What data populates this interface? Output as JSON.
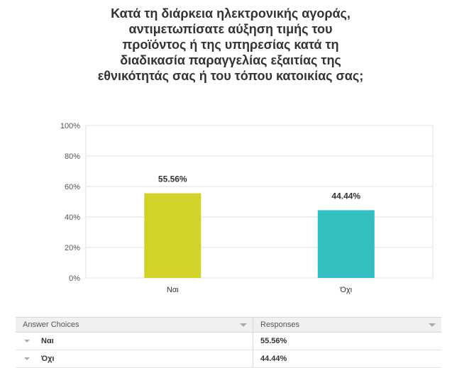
{
  "chart_data": {
    "type": "bar",
    "title_lines": [
      "Κατά τη διάρκεια ηλεκτρονικής αγοράς,",
      "αντιμετωπίσατε αύξηση τιμής του",
      "προϊόντος ή της υπηρεσίας κατά τη",
      "διαδικασία παραγγελίας εξαιτίας της",
      "εθνικότητάς σας ή του τόπου κατοικίας σας;"
    ],
    "categories": [
      "Ναι",
      "Όχι"
    ],
    "values": [
      55.56,
      44.44
    ],
    "data_labels": [
      "55.56%",
      "44.44%"
    ],
    "colors": [
      "#d1d22a",
      "#33bfc0"
    ],
    "ylim": [
      0,
      100
    ],
    "yticks": [
      "0%",
      "20%",
      "40%",
      "60%",
      "80%",
      "100%"
    ],
    "grid": true
  },
  "table": {
    "headers": [
      "Answer Choices",
      "Responses"
    ],
    "rows": [
      {
        "choice": "Ναι",
        "response": "55.56%"
      },
      {
        "choice": "Όχι",
        "response": "44.44%"
      }
    ]
  }
}
